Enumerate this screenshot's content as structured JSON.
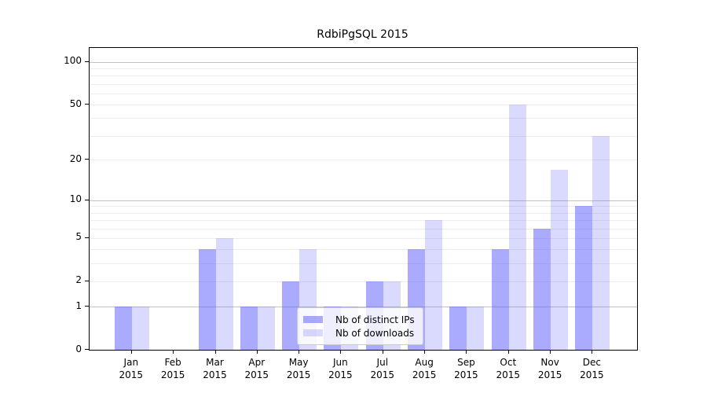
{
  "chart_data": {
    "type": "bar",
    "title": "RdbiPgSQL 2015",
    "year_label": "2015",
    "categories": [
      "Jan",
      "Feb",
      "Mar",
      "Apr",
      "May",
      "Jun",
      "Jul",
      "Aug",
      "Sep",
      "Oct",
      "Nov",
      "Dec"
    ],
    "series": [
      {
        "name": "Nb of distinct IPs",
        "color": "rgba(85,85,255,0.50)",
        "values": [
          1,
          0,
          4,
          1,
          2,
          1,
          2,
          4,
          1,
          4,
          6,
          9
        ]
      },
      {
        "name": "Nb of downloads",
        "color": "rgba(85,85,255,0.22)",
        "values": [
          1,
          0,
          5,
          1,
          4,
          1,
          2,
          7,
          1,
          50,
          17,
          30
        ]
      }
    ],
    "yticks": [
      100,
      50,
      20,
      10,
      5,
      2,
      1,
      0
    ],
    "major_gridlines": [
      1,
      10,
      100
    ],
    "minor_gridlines": [
      2,
      3,
      4,
      5,
      6,
      7,
      8,
      9,
      20,
      30,
      40,
      50,
      60,
      70,
      80,
      90
    ],
    "yscale": "log10(1+value)",
    "ylim": [
      0,
      125
    ],
    "grid": true,
    "legend_position": "lower-center",
    "colors": {
      "bar_dark": "rgba(85,85,255,0.50)",
      "bar_light": "rgba(85,85,255,0.22)",
      "grid_major": "#c3c3c3",
      "grid_minor": "#ececec",
      "axis": "#000000"
    }
  }
}
